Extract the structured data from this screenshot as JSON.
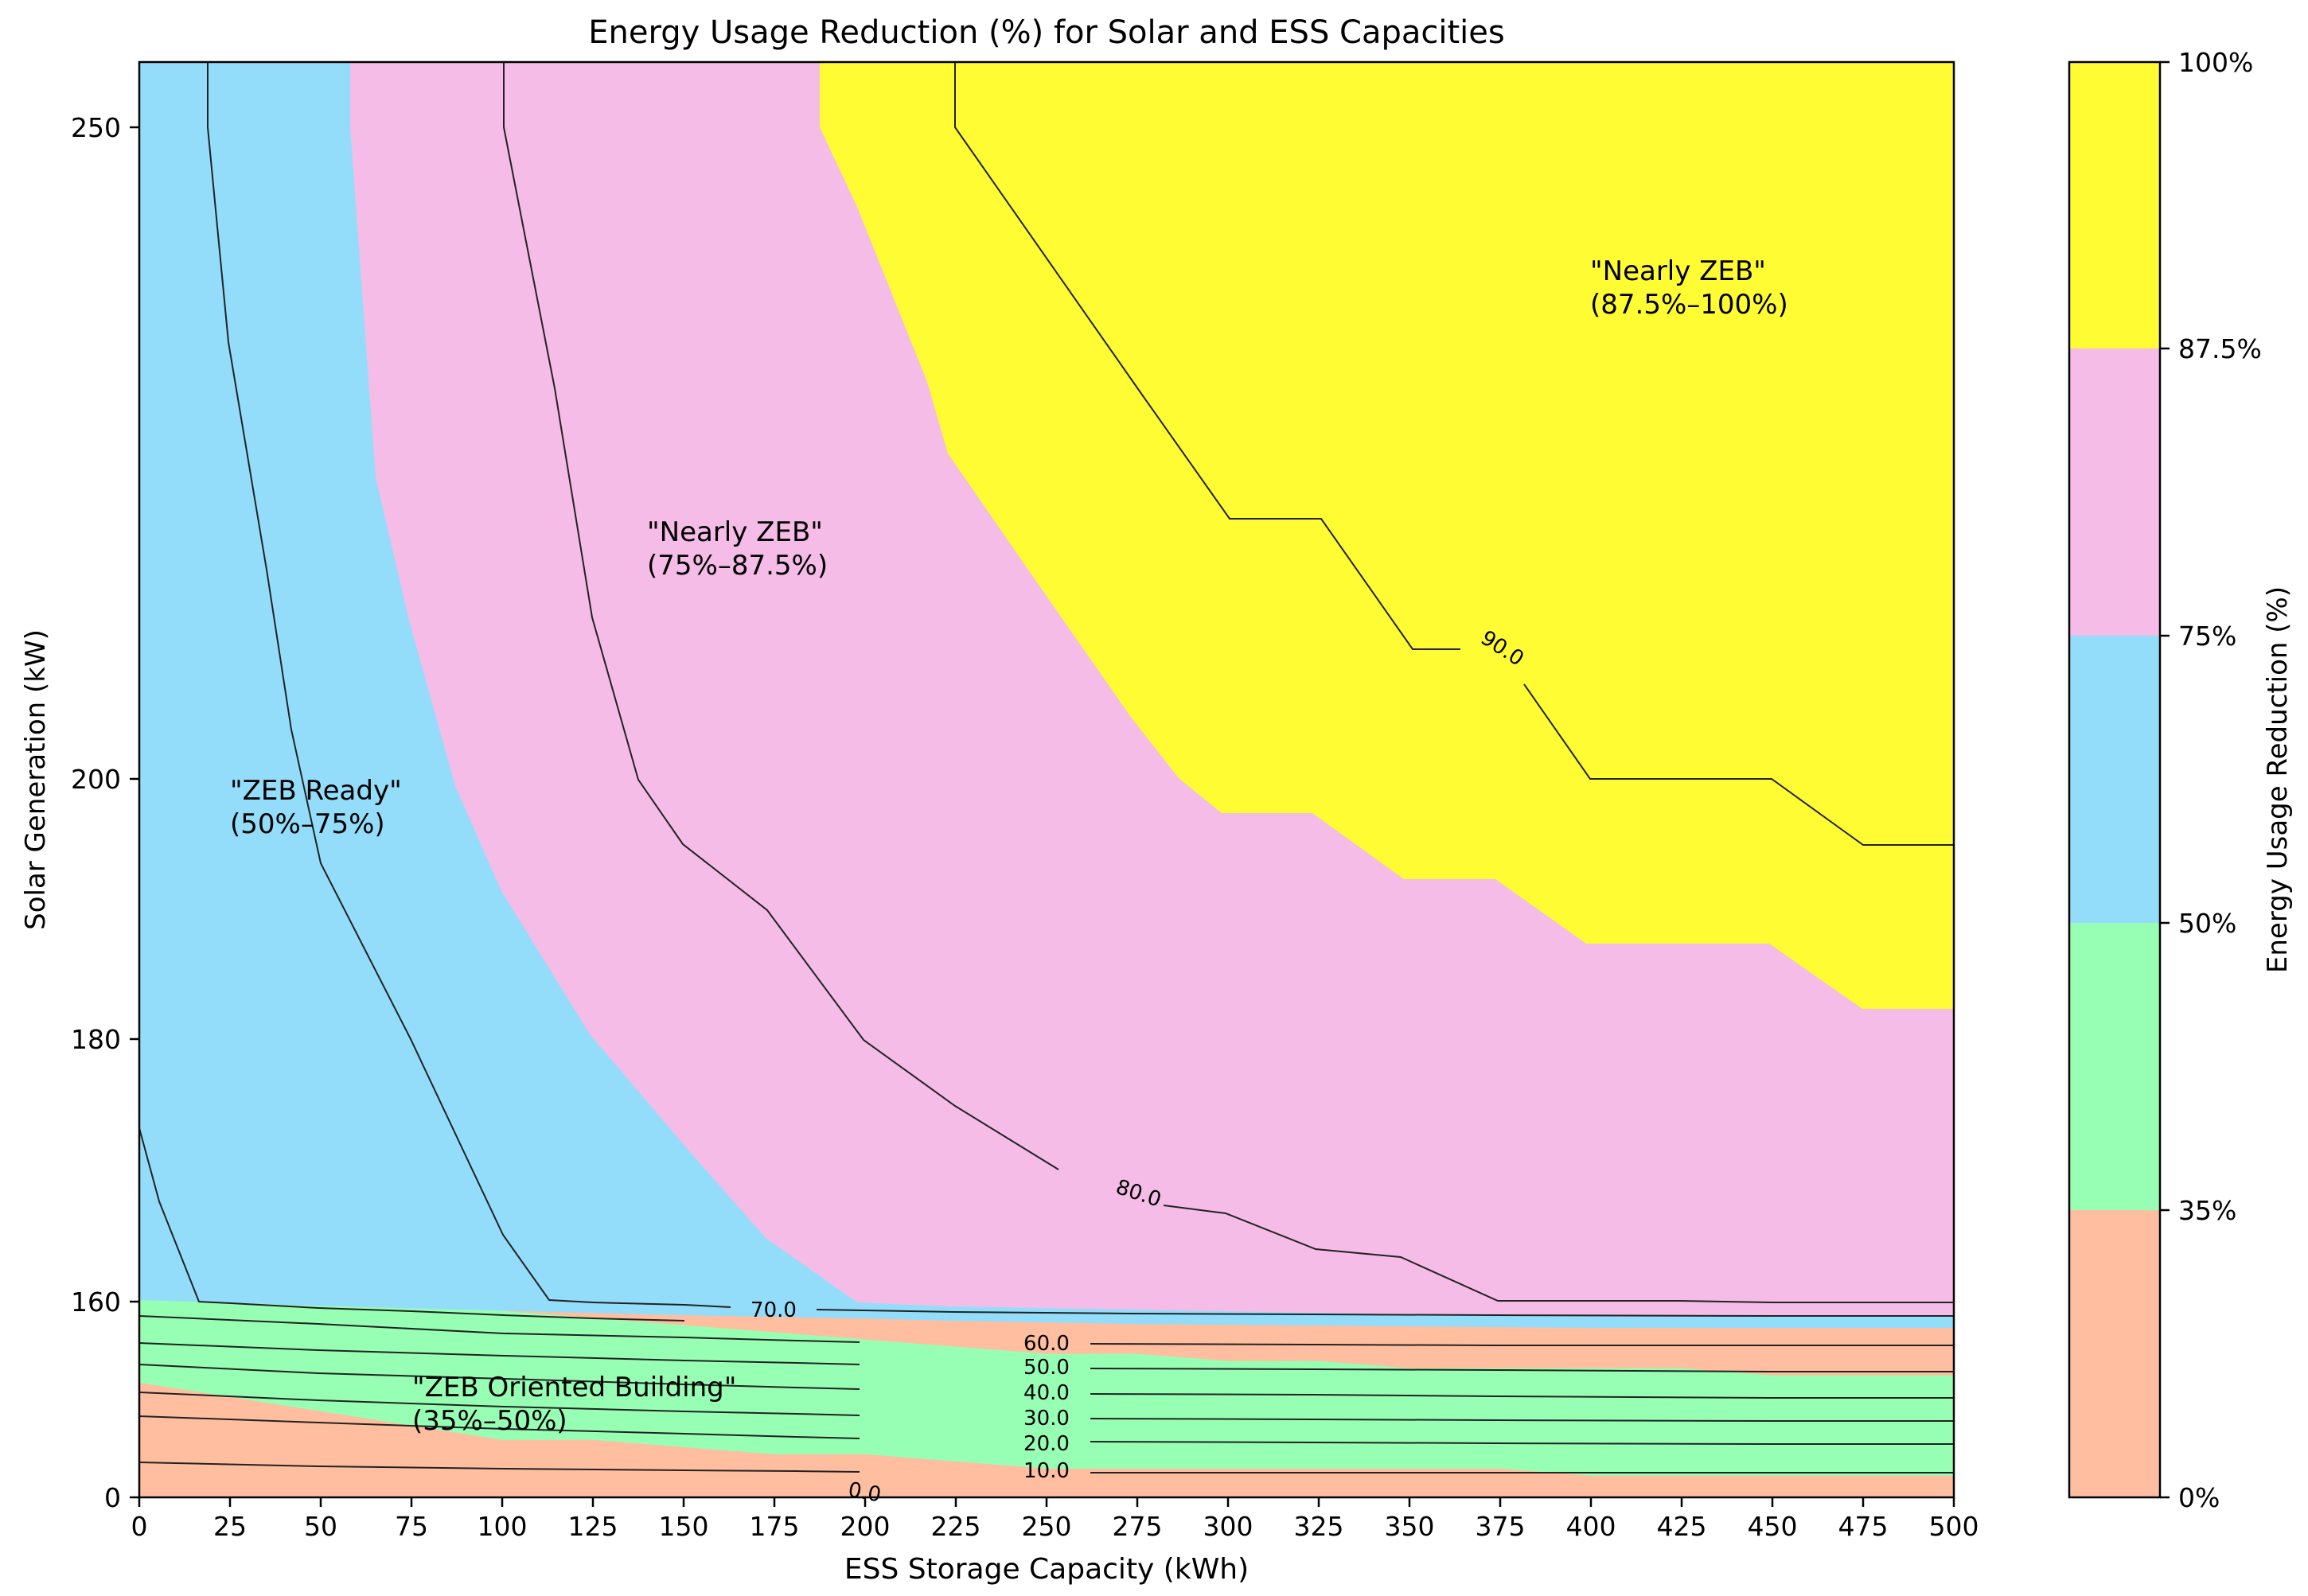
{
  "chart_data": {
    "type": "contour",
    "title": "Energy Usage Reduction (%) for Solar and ESS Capacities",
    "xlabel": "ESS Storage Capacity (kWh)",
    "ylabel": "Solar Generation (kW)",
    "x_ticks": [
      0,
      25,
      50,
      75,
      100,
      125,
      150,
      175,
      200,
      225,
      250,
      275,
      300,
      325,
      350,
      375,
      400,
      425,
      450,
      475,
      500
    ],
    "x_tick_labels": [
      "0",
      "25",
      "50",
      "75",
      "100",
      "125",
      "150",
      "175",
      "200",
      "225",
      "250",
      "275",
      "300",
      "325",
      "350",
      "375",
      "400",
      "425",
      "450",
      "475",
      "500"
    ],
    "xlim": [
      0,
      500
    ],
    "y_ticks": [
      "0",
      "160",
      "180",
      "200",
      "250"
    ],
    "colorbar": {
      "label": "Energy Usage Reduction (%)",
      "ticks": [
        "0%",
        "35%",
        "50%",
        "75%",
        "87.5%",
        "100%"
      ],
      "bands": [
        {
          "from": 0,
          "to": 35,
          "color": "#ffbe9f"
        },
        {
          "from": 35,
          "to": 50,
          "color": "#96ffb3"
        },
        {
          "from": 50,
          "to": 75,
          "color": "#93ddfb"
        },
        {
          "from": 75,
          "to": 87.5,
          "color": "#f4bce7"
        },
        {
          "from": 87.5,
          "to": 100,
          "color": "#fffc33"
        }
      ]
    },
    "contour_levels": [
      "0.0",
      "10.0",
      "20.0",
      "30.0",
      "40.0",
      "50.0",
      "60.0",
      "70.0",
      "80.0",
      "90.0"
    ],
    "region_boundaries": {
      "x": [
        0,
        25,
        50,
        75,
        100,
        125,
        150,
        175,
        200,
        225,
        250,
        275,
        300,
        325,
        350,
        375,
        400,
        425,
        450,
        475,
        500
      ],
      "b35": [
        0.08,
        0.07,
        0.06,
        0.05,
        0.04,
        0.04,
        0.035,
        0.03,
        0.03,
        0.025,
        0.02,
        0.02,
        0.02,
        0.02,
        0.02,
        0.02,
        0.015,
        0.015,
        0.015,
        0.015,
        0.015
      ],
      "b50": [
        0.165,
        0.155,
        0.145,
        0.14,
        0.13,
        0.125,
        0.12,
        0.115,
        0.11,
        0.105,
        0.1,
        0.1,
        0.095,
        0.095,
        0.09,
        0.09,
        0.09,
        0.09,
        0.085,
        0.085,
        0.085
      ]
    },
    "annotations": [
      {
        "line1": "\"Nearly ZEB\"",
        "line2": "(87.5%–100%)"
      },
      {
        "line1": "\"Nearly ZEB\"",
        "line2": "(75%–87.5%)"
      },
      {
        "line1": "\"ZEB Ready\"",
        "line2": "(50%–75%)"
      },
      {
        "line1": "\"ZEB Oriented Building\"",
        "line2": "(35%–50%)"
      }
    ]
  }
}
